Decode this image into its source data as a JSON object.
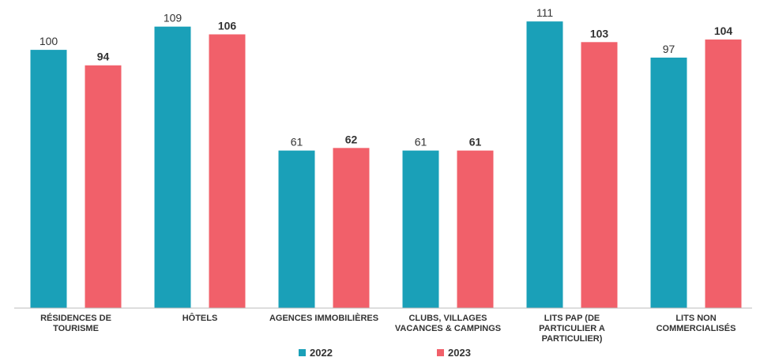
{
  "chart_data": {
    "type": "bar",
    "categories": [
      "RÉSIDENCES DE\nTOURISME",
      "HÔTELS",
      "AGENCES IMMOBILIÈRES",
      "CLUBS, VILLAGES\nVACANCES & CAMPINGS",
      "LITS PAP (DE\nPARTICULIER A\nPARTICULIER)",
      "LITS NON\nCOMMERCIALISÉS"
    ],
    "series": [
      {
        "name": "2022",
        "color": "#1aa0b8",
        "values": [
          100,
          109,
          61,
          61,
          111,
          97
        ]
      },
      {
        "name": "2023",
        "color": "#f1606a",
        "values": [
          94,
          106,
          62,
          61,
          103,
          104
        ]
      }
    ],
    "ylim": [
      0,
      119
    ],
    "legend": "bottom"
  }
}
